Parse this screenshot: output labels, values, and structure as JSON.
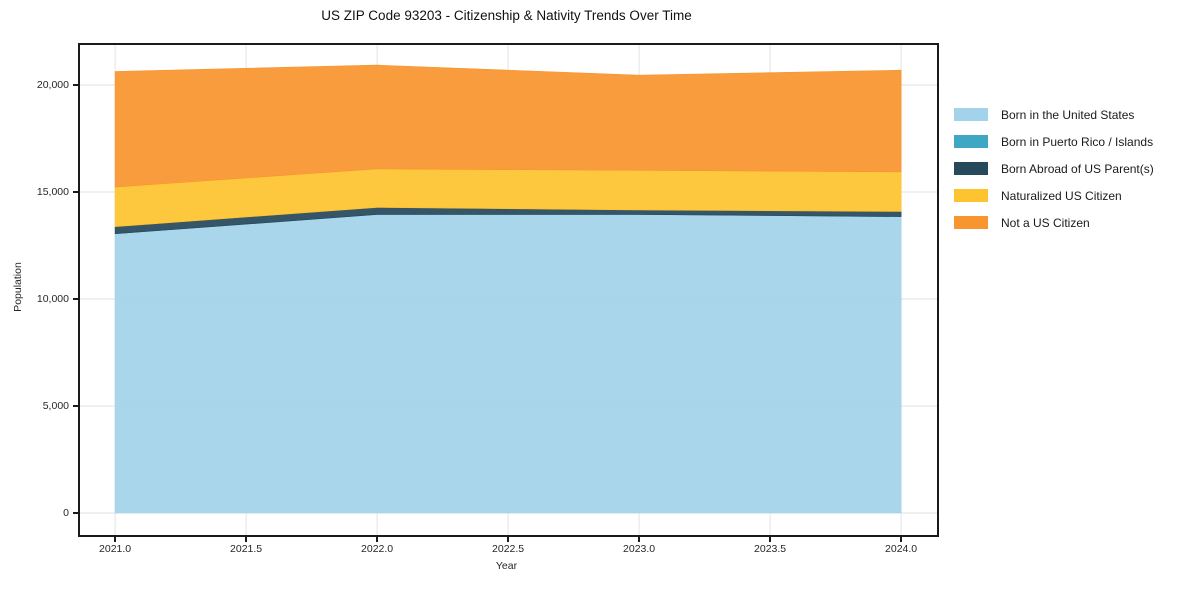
{
  "chart": {
    "title": "US ZIP Code 93203 - Citizenship & Nativity Trends Over Time",
    "x_axis": {
      "label": "Year",
      "tick_labels": [
        "2021.0",
        "2021.5",
        "2022.0",
        "2022.5",
        "2023.0",
        "2023.5",
        "2024.0"
      ],
      "tick_values": [
        2021.0,
        2021.5,
        2022.0,
        2022.5,
        2023.0,
        2023.5,
        2024.0
      ]
    },
    "y_axis": {
      "label": "Population",
      "tick_labels": [
        "0",
        "5,000",
        "10,000",
        "15,000",
        "20,000"
      ],
      "tick_values": [
        0,
        5000,
        10000,
        15000,
        20000
      ]
    }
  },
  "chart_data": {
    "type": "area",
    "stacked": true,
    "title": "US ZIP Code 93203 - Citizenship & Nativity Trends Over Time",
    "xlabel": "Year",
    "ylabel": "Population",
    "x": [
      2021,
      2022,
      2023,
      2024
    ],
    "series": [
      {
        "name": "Born in the United States",
        "color": "#A3D3EA",
        "values": [
          13050,
          13950,
          13950,
          13850
        ]
      },
      {
        "name": "Born in Puerto Rico / Islands",
        "color": "#3FA7C3",
        "values": [
          0,
          0,
          0,
          0
        ]
      },
      {
        "name": "Born Abroad of US Parent(s)",
        "color": "#27495C",
        "values": [
          330,
          330,
          210,
          240
        ]
      },
      {
        "name": "Naturalized US Citizen",
        "color": "#FDC42F",
        "values": [
          1850,
          1800,
          1850,
          1850
        ]
      },
      {
        "name": "Not a US Citizen",
        "color": "#F8952E",
        "values": [
          5400,
          4850,
          4450,
          4750
        ]
      }
    ],
    "totals": [
      20630,
      20930,
      20460,
      20690
    ],
    "xlim": [
      2020.866,
      2024.137
    ],
    "ylim": [
      -1028,
      21869
    ],
    "grid": true,
    "legend_position": "right-outside"
  },
  "style": {
    "grid_color": "#e2e2e2",
    "spine_color": "#1a1a1a",
    "text_color": "#262626"
  }
}
